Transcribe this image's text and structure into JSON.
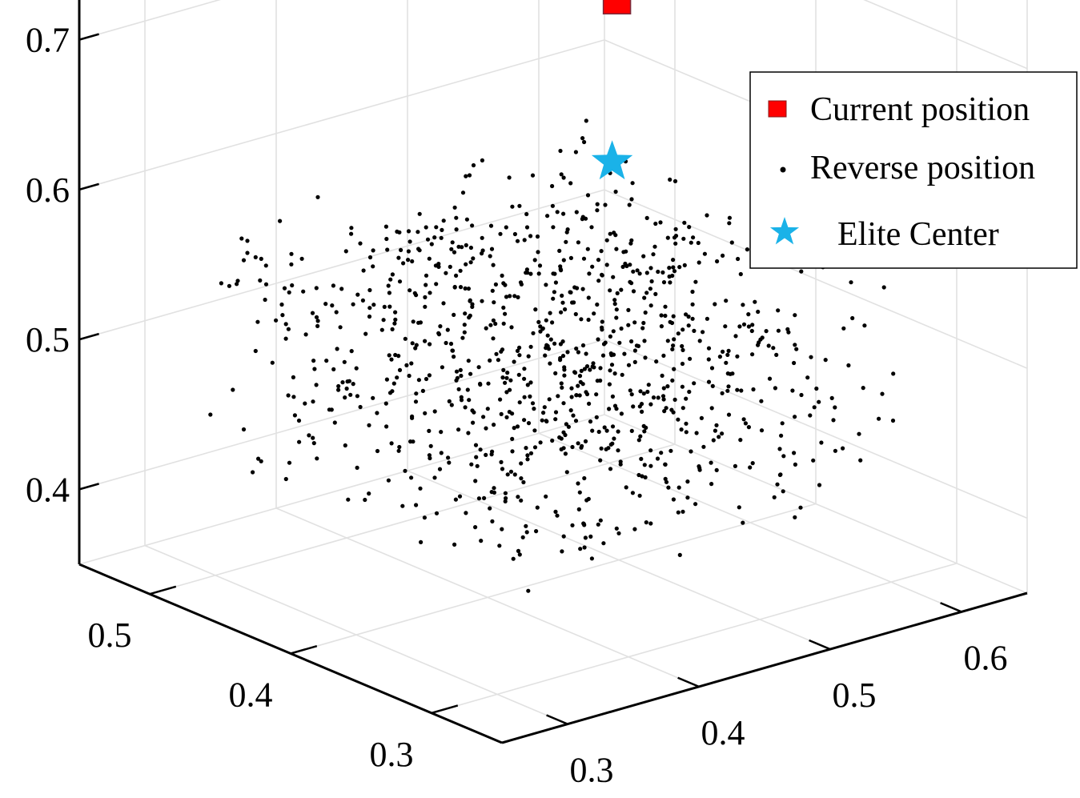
{
  "chart_data": {
    "type": "scatter3d",
    "title": "",
    "xlabel": "",
    "ylabel": "",
    "zlabel": "",
    "xlim": [
      0.25,
      0.65
    ],
    "ylim": [
      0.25,
      0.55
    ],
    "zlim": [
      0.35,
      0.75
    ],
    "x_ticks": [
      "0.3",
      "0.4",
      "0.5",
      "0.6"
    ],
    "y_ticks": [
      "0.3",
      "0.4",
      "0.5"
    ],
    "z_ticks": [
      "0.4",
      "0.5",
      "0.6",
      "0.7"
    ],
    "grid": true,
    "legend_position": "top-right",
    "series": [
      {
        "name": "Current position",
        "marker": "square",
        "color": "#ff0000",
        "points": [
          [
            0.52,
            0.42,
            0.71
          ]
        ]
      },
      {
        "name": "Reverse position",
        "marker": "dot",
        "color": "#000000",
        "cloud": {
          "count": 1000,
          "center": [
            0.45,
            0.4,
            0.5
          ],
          "radius": 0.14,
          "distribution": "uniform-cube-about-center"
        }
      },
      {
        "name": "Elite Center",
        "marker": "star",
        "color": "#1ab2e8",
        "points": [
          [
            0.52,
            0.42,
            0.6
          ]
        ]
      }
    ]
  }
}
